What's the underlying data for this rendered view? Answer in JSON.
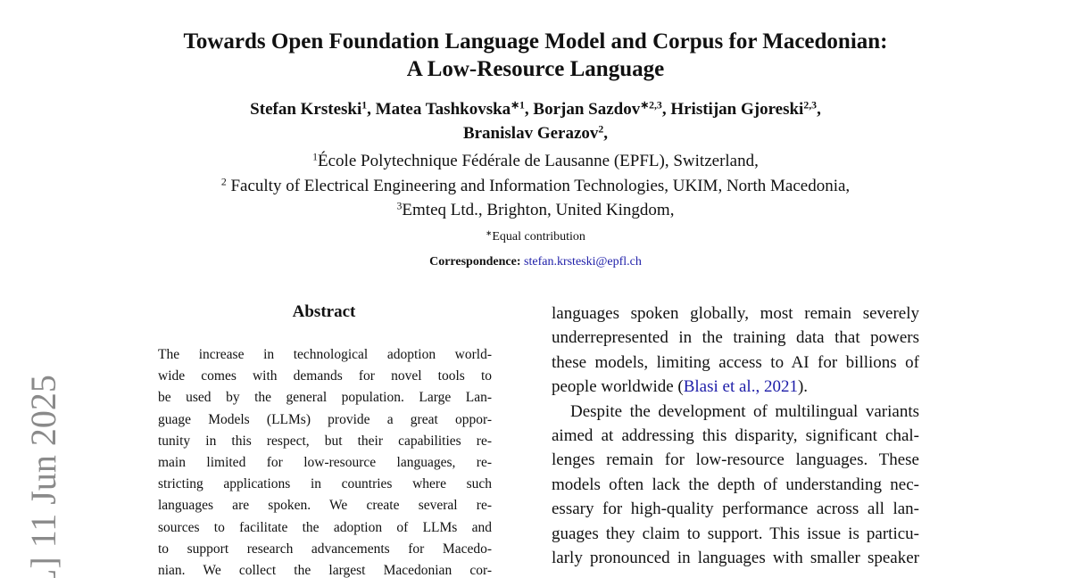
{
  "stamp": "L] 11 Jun 2025",
  "header": {
    "title": [
      "Towards Open Foundation Language Model and Corpus for Macedonian:",
      "A Low-Resource Language"
    ],
    "authors": [
      {
        "name": "Stefan Krsteski",
        "mark": "1",
        "sep": ","
      },
      {
        "name": "Matea Tashkovska",
        "mark": "∗1",
        "sep": ","
      },
      {
        "name": "Borjan Sazdov",
        "mark": "∗2,3",
        "sep": ","
      },
      {
        "name": "Hristijan Gjoreski",
        "mark": "2,3",
        "sep": ","
      },
      {
        "name": "Branislav Gerazov",
        "mark": "2",
        "sep": ","
      }
    ],
    "affiliations": [
      {
        "mark": "1",
        "text": "École Polytechnique Fédérale de Lausanne (EPFL), Switzerland,"
      },
      {
        "mark": "2",
        "text": "Faculty of Electrical Engineering and Information Technologies, UKIM, North Macedonia,"
      },
      {
        "mark": "3",
        "text": "Emteq Ltd., Brighton, United Kingdom,"
      }
    ],
    "equal": {
      "mark": "∗",
      "text": "Equal contribution"
    },
    "correspondence": {
      "label": "Correspondence:",
      "email": "stefan.krsteski@epfl.ch"
    }
  },
  "abstract": {
    "heading": "Abstract",
    "lines": [
      "The increase in technological adoption world-",
      "wide comes with demands for novel tools to",
      "be used by the general population. Large Lan-",
      "guage Models (LLMs) provide a great oppor-",
      "tunity in this respect, but their capabilities re-",
      "main limited for low-resource languages, re-",
      "stricting applications in countries where such",
      "languages are spoken. We create several re-",
      "sources to facilitate the adoption of LLMs and",
      "to support research advancements for Macedo-",
      "nian. We collect the largest Macedonian cor-"
    ]
  },
  "body": {
    "paragraph1": {
      "lines": [
        "languages spoken globally, most remain severely",
        "underrepresented in the training data that powers",
        "these models, limiting access to AI for billions of"
      ],
      "last": {
        "before": "people worldwide (",
        "cite": "Blasi et al., 2021",
        "after": ")."
      }
    },
    "paragraph2": {
      "lines": [
        "Despite the development of multilingual variants",
        "aimed at addressing this disparity, significant chal-",
        "lenges remain for low-resource languages. These",
        "models often lack the depth of understanding nec-",
        "essary for high-quality performance across all lan-",
        "guages they claim to support. This issue is particu-",
        "larly pronounced in languages with smaller speaker"
      ]
    }
  }
}
